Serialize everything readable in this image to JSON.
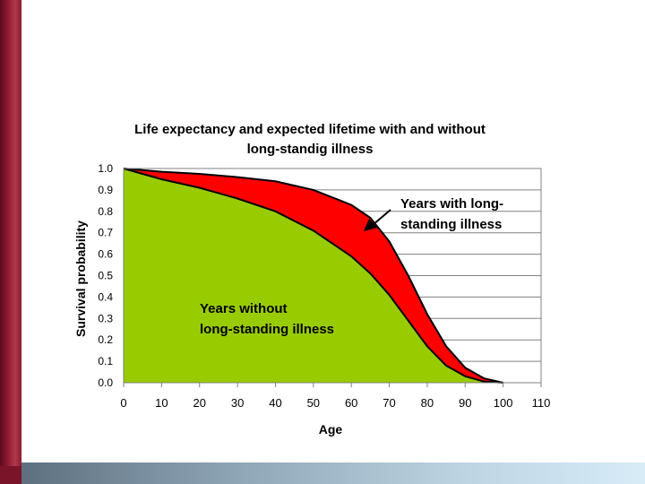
{
  "colors": {
    "left_bar": "#8c1a30",
    "bottom_bar": "#8fa6b6",
    "green_area": "#99cc00",
    "red_area": "#ff0000"
  },
  "chart_data": {
    "type": "area",
    "title_line1": "Life expectancy and expected lifetime with and without",
    "title_line2": "long-standig illness",
    "xlabel": "Age",
    "ylabel": "Survival probability",
    "xlim": [
      0,
      110
    ],
    "ylim": [
      0,
      1.0
    ],
    "x_ticks": [
      "0",
      "10",
      "20",
      "30",
      "40",
      "50",
      "60",
      "70",
      "80",
      "90",
      "100",
      "110"
    ],
    "y_ticks": [
      "0.0",
      "0.1",
      "0.2",
      "0.3",
      "0.4",
      "0.5",
      "0.6",
      "0.7",
      "0.8",
      "0.9",
      "1.0"
    ],
    "grid": true,
    "x": [
      0,
      10,
      20,
      30,
      40,
      50,
      60,
      65,
      70,
      75,
      80,
      85,
      90,
      95,
      100
    ],
    "series": [
      {
        "values": [
          1.0,
          0.985,
          0.975,
          0.96,
          0.94,
          0.9,
          0.83,
          0.77,
          0.66,
          0.5,
          0.32,
          0.17,
          0.07,
          0.02,
          0.0
        ]
      },
      {
        "values": [
          1.0,
          0.95,
          0.91,
          0.86,
          0.8,
          0.71,
          0.59,
          0.51,
          0.41,
          0.29,
          0.17,
          0.08,
          0.03,
          0.005,
          0.0
        ]
      }
    ],
    "annotation_red_line1": "Years with long-",
    "annotation_red_line2": "standing illness",
    "annotation_green_line1": "Years without",
    "annotation_green_line2": "long-standing illness"
  }
}
